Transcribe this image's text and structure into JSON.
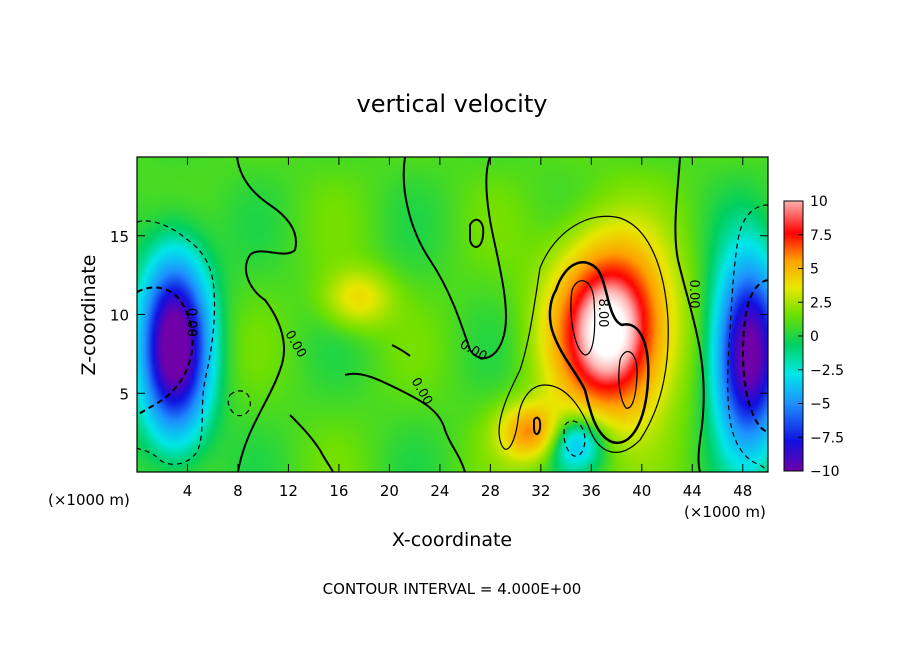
{
  "chart_data": {
    "type": "heatmap",
    "title": "vertical velocity",
    "xlabel": "X-coordinate",
    "ylabel": "Z-coordinate",
    "x_unit": "(×1000 m)",
    "x_unit_right": "(×1000 m)",
    "xlim": [
      0,
      50
    ],
    "ylim": [
      0,
      20
    ],
    "x_ticks": [
      4,
      8,
      12,
      16,
      20,
      24,
      28,
      32,
      36,
      40,
      44,
      48
    ],
    "y_ticks": [
      5,
      10,
      15
    ],
    "colorbar_ticks": [
      10,
      7.5,
      5,
      2.5,
      0,
      -2.5,
      -5,
      -7.5,
      -10
    ],
    "colorbar_tick_labels": [
      "10",
      "7.5",
      "5",
      "2.5",
      "0",
      "−2.5",
      "−5",
      "−7.5",
      "−10"
    ],
    "colorbar_range": [
      -10,
      10
    ],
    "contour_interval_label": "CONTOUR INTERVAL = 4.000E+00",
    "contour_labels": [
      {
        "text": "0.00",
        "x": 4,
        "z": 9.5,
        "rotate": 90
      },
      {
        "text": "0.00",
        "x": 12.3,
        "z": 8,
        "rotate": 60
      },
      {
        "text": "0.00",
        "x": 22.3,
        "z": 5,
        "rotate": 60
      },
      {
        "text": "0.00",
        "x": 26.5,
        "z": 7.5,
        "rotate": 30
      },
      {
        "text": "8.00",
        "x": 36.6,
        "z": 10.1,
        "rotate": 90
      },
      {
        "text": "0.00",
        "x": 43.8,
        "z": 11.3,
        "rotate": 90
      }
    ],
    "features": [
      {
        "kind": "updraft",
        "x": 37.5,
        "z": 9,
        "peak": 12
      },
      {
        "kind": "updraft",
        "x": 31.5,
        "z": 2.5,
        "peak": 6
      },
      {
        "kind": "updraft",
        "x": 17.5,
        "z": 11,
        "peak": 3
      },
      {
        "kind": "downdraft",
        "x": 3,
        "z": 8,
        "peak": -11
      },
      {
        "kind": "downdraft",
        "x": 48.5,
        "z": 7.5,
        "peak": -11
      },
      {
        "kind": "downdraft",
        "x": 34.5,
        "z": 2,
        "peak": -5
      }
    ]
  },
  "colors": {
    "colormap": [
      "#7000a8",
      "#1010e0",
      "#1e90ff",
      "#00e8e8",
      "#00d060",
      "#70e000",
      "#e8e800",
      "#ffa000",
      "#ff0000",
      "#ffffff"
    ]
  }
}
